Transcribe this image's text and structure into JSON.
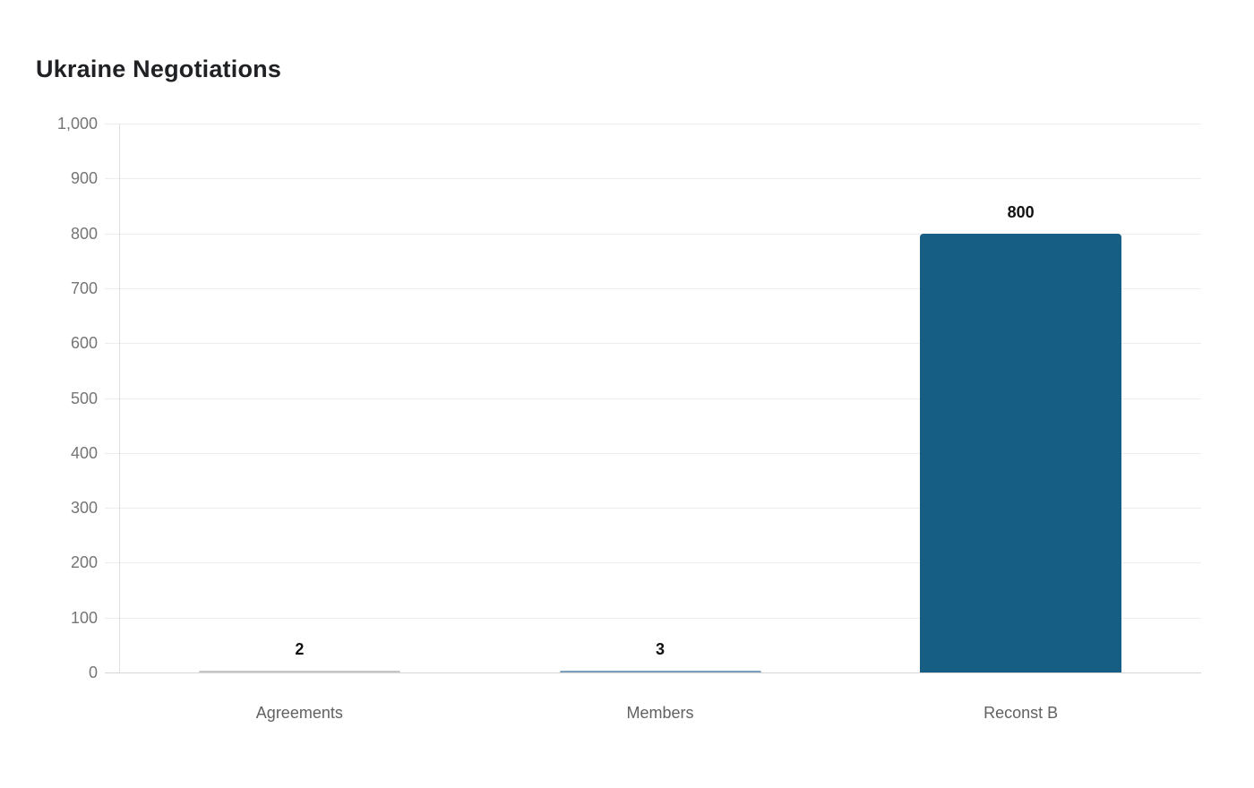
{
  "page": {
    "background": "#ffffff"
  },
  "chart_data": {
    "type": "bar",
    "title": "Ukraine Negotiations",
    "categories": [
      "Agreements",
      "Members",
      "Reconst B"
    ],
    "values": [
      2,
      3,
      800
    ],
    "value_labels": [
      "2",
      "3",
      "800"
    ],
    "bar_colors": [
      "#c6c6c6",
      "#7d9fbe",
      "#175e84"
    ],
    "xlabel": "",
    "ylabel": "",
    "ylim": [
      0,
      1000
    ],
    "ytick_step": 100,
    "ytick_labels": [
      "0",
      "100",
      "200",
      "300",
      "400",
      "500",
      "600",
      "700",
      "800",
      "900",
      "1,000"
    ],
    "grid": "horizontal",
    "legend": "none",
    "colors": {
      "title": "#202124",
      "ytick_label": "#757575",
      "xtick_label": "#616161",
      "value_label": "#111111",
      "gridline": "#ededed",
      "axis_line": "#e0e0e0",
      "baseline": "#d6d6d6"
    }
  }
}
